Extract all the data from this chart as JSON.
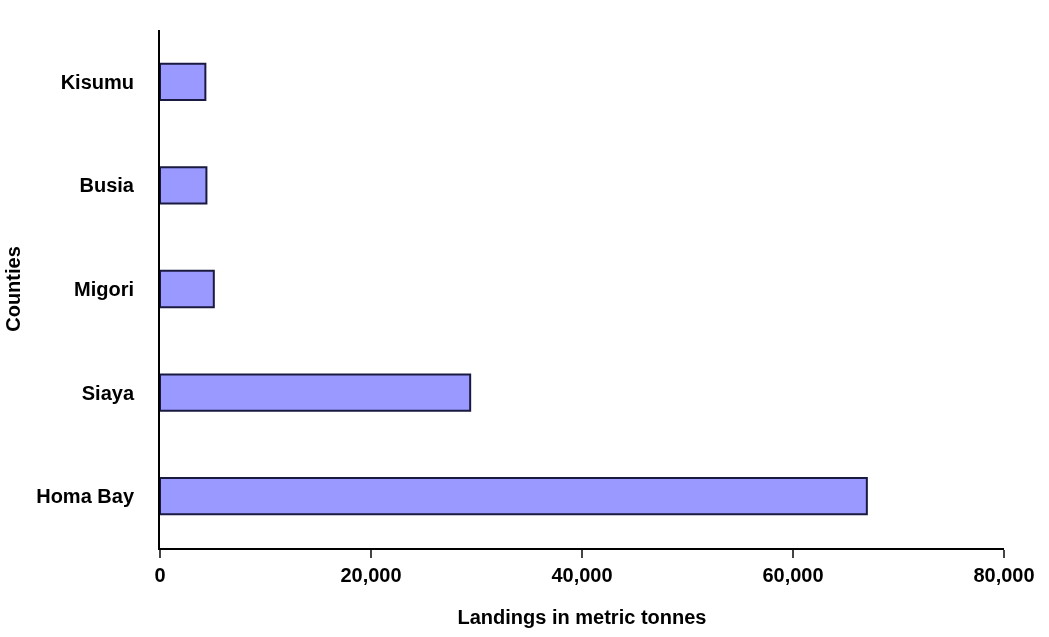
{
  "chart_data": {
    "type": "bar",
    "orientation": "horizontal",
    "xlabel": "Landings in metric tonnes",
    "ylabel": "Counties",
    "categories": [
      "Kisumu",
      "Busia",
      "Migori",
      "Siaya",
      "Homa Bay"
    ],
    "values": [
      4300,
      4400,
      5100,
      29400,
      67000
    ],
    "color": "#9999ff",
    "xlim": [
      0,
      80000
    ],
    "xticks": [
      {
        "value": 0,
        "label": "0"
      },
      {
        "value": 20000,
        "label": "20,000"
      },
      {
        "value": 40000,
        "label": "40,000"
      },
      {
        "value": 60000,
        "label": "60,000"
      },
      {
        "value": 80000,
        "label": "80,000"
      }
    ],
    "legend": false
  }
}
